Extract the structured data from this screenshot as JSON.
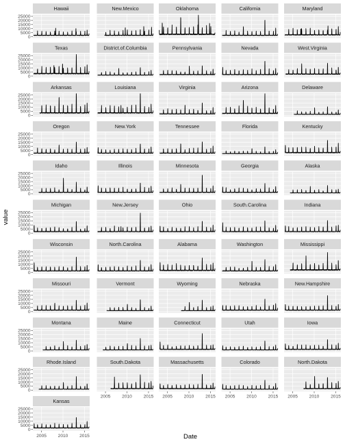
{
  "chart_data": {
    "type": "line",
    "facet_layout": "wrap",
    "ncol": 5,
    "xlabel": "Date",
    "ylabel": "value",
    "xlim": [
      2003.0,
      2016.2
    ],
    "ylim": [
      -1500,
      27000
    ],
    "x_ticks": [
      2005,
      2010,
      2015
    ],
    "x_tick_labels": [
      "2005",
      "2010",
      "2015"
    ],
    "y_ticks": [
      0,
      5000,
      10000,
      15000,
      20000,
      25000
    ],
    "y_tick_labels": [
      "0",
      "5000",
      "10000",
      "15000",
      "20000",
      "25000"
    ],
    "grid": true,
    "colors": {
      "panel_bg": "#ebebeb",
      "strip_bg": "#d9d9d9",
      "grid_major": "#ffffff",
      "line": "#000000"
    },
    "series": [
      {
        "name": "Hawaii",
        "start": 2003.2,
        "base": 1500,
        "peaks": [
          {
            "x": 2008.3,
            "y": 9000
          },
          {
            "x": 2013.0,
            "y": 9000
          },
          {
            "x": 2015.6,
            "y": 6500
          }
        ],
        "seasonal": 4500
      },
      {
        "name": "New.Mexico",
        "start": 2004.8,
        "base": 1500,
        "peaks": [
          {
            "x": 2009.6,
            "y": 10000
          },
          {
            "x": 2013.9,
            "y": 11000
          },
          {
            "x": 2015.7,
            "y": 10000
          }
        ],
        "seasonal": 5500
      },
      {
        "name": "Oklahoma",
        "start": 2003.1,
        "base": 2500,
        "peaks": [
          {
            "x": 2003.8,
            "y": 15000
          },
          {
            "x": 2008.1,
            "y": 14000
          },
          {
            "x": 2012.2,
            "y": 24500
          },
          {
            "x": 2014.8,
            "y": 14000
          }
        ],
        "seasonal": 9500
      },
      {
        "name": "California",
        "start": 2003.2,
        "base": 1500,
        "peaks": [
          {
            "x": 2008.1,
            "y": 8000
          },
          {
            "x": 2013.1,
            "y": 16000
          },
          {
            "x": 2015.6,
            "y": 9000
          }
        ],
        "seasonal": 5000
      },
      {
        "name": "Maryland",
        "start": 2003.2,
        "base": 2000,
        "peaks": [
          {
            "x": 2006.9,
            "y": 8000
          },
          {
            "x": 2013.2,
            "y": 11000
          },
          {
            "x": 2015.6,
            "y": 10000
          }
        ],
        "seasonal": 7000
      },
      {
        "name": "Texas",
        "start": 2003.2,
        "base": 2500,
        "peaks": [
          {
            "x": 2007.9,
            "y": 11000
          },
          {
            "x": 2009.9,
            "y": 13000
          },
          {
            "x": 2013.1,
            "y": 19000
          },
          {
            "x": 2015.6,
            "y": 11000
          }
        ],
        "seasonal": 7500
      },
      {
        "name": "District.of.Columbia",
        "start": 2003.2,
        "base": 1000,
        "peaks": [
          {
            "x": 2008.1,
            "y": 5000
          },
          {
            "x": 2013.1,
            "y": 7000
          },
          {
            "x": 2015.6,
            "y": 6000
          }
        ],
        "seasonal": 3500
      },
      {
        "name": "Pennsylvania",
        "start": 2003.2,
        "base": 1500,
        "peaks": [
          {
            "x": 2010.1,
            "y": 6000
          },
          {
            "x": 2013.1,
            "y": 8000
          },
          {
            "x": 2015.6,
            "y": 7000
          }
        ],
        "seasonal": 4500
      },
      {
        "name": "Nevada",
        "start": 2003.2,
        "base": 1500,
        "peaks": [
          {
            "x": 2003.3,
            "y": 9000
          },
          {
            "x": 2013.1,
            "y": 13000
          },
          {
            "x": 2015.6,
            "y": 8000
          }
        ],
        "seasonal": 5500
      },
      {
        "name": "West.Virginia",
        "start": 2003.4,
        "base": 2000,
        "peaks": [
          {
            "x": 2007.1,
            "y": 8000
          },
          {
            "x": 2013.1,
            "y": 10000
          },
          {
            "x": 2015.6,
            "y": 9000
          }
        ],
        "seasonal": 6000
      },
      {
        "name": "Arkansas",
        "start": 2004.6,
        "base": 2500,
        "peaks": [
          {
            "x": 2009.1,
            "y": 14000
          },
          {
            "x": 2013.1,
            "y": 24000
          },
          {
            "x": 2015.6,
            "y": 12000
          }
        ],
        "seasonal": 9500
      },
      {
        "name": "Louisiana",
        "start": 2003.2,
        "base": 2500,
        "peaks": [
          {
            "x": 2008.6,
            "y": 9000
          },
          {
            "x": 2013.1,
            "y": 21000
          },
          {
            "x": 2015.6,
            "y": 11000
          }
        ],
        "seasonal": 7500
      },
      {
        "name": "Virginia",
        "start": 2003.2,
        "base": 1500,
        "peaks": [
          {
            "x": 2009.1,
            "y": 7000
          },
          {
            "x": 2013.1,
            "y": 11000
          },
          {
            "x": 2015.6,
            "y": 8000
          }
        ],
        "seasonal": 5000
      },
      {
        "name": "Arizona",
        "start": 2003.2,
        "base": 2000,
        "peaks": [
          {
            "x": 2008.1,
            "y": 11000
          },
          {
            "x": 2013.1,
            "y": 20000
          },
          {
            "x": 2015.6,
            "y": 10000
          }
        ],
        "seasonal": 7000
      },
      {
        "name": "Delaware",
        "start": 2005.3,
        "base": 1000,
        "peaks": [
          {
            "x": 2010.1,
            "y": 4500
          },
          {
            "x": 2013.1,
            "y": 7000
          },
          {
            "x": 2015.6,
            "y": 6000
          }
        ],
        "seasonal": 3500
      },
      {
        "name": "Oregon",
        "start": 2003.2,
        "base": 1500,
        "peaks": [
          {
            "x": 2009.1,
            "y": 6000
          },
          {
            "x": 2013.1,
            "y": 10000
          },
          {
            "x": 2015.6,
            "y": 7000
          }
        ],
        "seasonal": 5000
      },
      {
        "name": "New.York",
        "start": 2003.2,
        "base": 1500,
        "peaks": [
          {
            "x": 2003.3,
            "y": 7000
          },
          {
            "x": 2013.1,
            "y": 9000
          },
          {
            "x": 2015.6,
            "y": 8000
          }
        ],
        "seasonal": 4500
      },
      {
        "name": "Tennessee",
        "start": 2003.2,
        "base": 1500,
        "peaks": [
          {
            "x": 2008.1,
            "y": 7000
          },
          {
            "x": 2013.1,
            "y": 10000
          },
          {
            "x": 2015.6,
            "y": 9000
          }
        ],
        "seasonal": 5000
      },
      {
        "name": "Florida",
        "start": 2003.2,
        "base": 1000,
        "peaks": [
          {
            "x": 2010.1,
            "y": 4000
          },
          {
            "x": 2013.1,
            "y": 6000
          },
          {
            "x": 2015.6,
            "y": 5000
          }
        ],
        "seasonal": 3000
      },
      {
        "name": "Kentucky",
        "start": 2003.2,
        "base": 2000,
        "peaks": [
          {
            "x": 2003.3,
            "y": 9000
          },
          {
            "x": 2013.1,
            "y": 11000
          },
          {
            "x": 2015.6,
            "y": 12000
          }
        ],
        "seasonal": 6500
      },
      {
        "name": "Idaho",
        "start": 2004.4,
        "base": 1500,
        "peaks": [
          {
            "x": 2010.1,
            "y": 14000
          },
          {
            "x": 2013.1,
            "y": 8000
          },
          {
            "x": 2015.6,
            "y": 7000
          }
        ],
        "seasonal": 4500
      },
      {
        "name": "Illinois",
        "start": 2003.2,
        "base": 1500,
        "peaks": [
          {
            "x": 2003.3,
            "y": 8000
          },
          {
            "x": 2013.1,
            "y": 9000
          },
          {
            "x": 2015.6,
            "y": 8000
          }
        ],
        "seasonal": 5000
      },
      {
        "name": "Minnesota",
        "start": 2003.2,
        "base": 1500,
        "peaks": [
          {
            "x": 2008.1,
            "y": 6000
          },
          {
            "x": 2013.1,
            "y": 18000
          },
          {
            "x": 2015.6,
            "y": 8000
          }
        ],
        "seasonal": 5000
      },
      {
        "name": "Georgia",
        "start": 2003.2,
        "base": 1500,
        "peaks": [
          {
            "x": 2003.3,
            "y": 7000
          },
          {
            "x": 2013.1,
            "y": 8000
          },
          {
            "x": 2015.6,
            "y": 7000
          }
        ],
        "seasonal": 4500
      },
      {
        "name": "Alaska",
        "start": 2004.4,
        "base": 1000,
        "peaks": [
          {
            "x": 2009.1,
            "y": 4500
          },
          {
            "x": 2013.1,
            "y": 6000
          },
          {
            "x": 2015.6,
            "y": 5000
          }
        ],
        "seasonal": 3500
      },
      {
        "name": "Michigan",
        "start": 2003.2,
        "base": 1500,
        "peaks": [
          {
            "x": 2003.3,
            "y": 8000
          },
          {
            "x": 2013.1,
            "y": 9000
          },
          {
            "x": 2015.6,
            "y": 7000
          }
        ],
        "seasonal": 4500
      },
      {
        "name": "New.Jersey",
        "start": 2003.2,
        "base": 1500,
        "peaks": [
          {
            "x": 2008.6,
            "y": 6000
          },
          {
            "x": 2013.1,
            "y": 20000
          },
          {
            "x": 2015.6,
            "y": 7000
          }
        ],
        "seasonal": 5500
      },
      {
        "name": "Ohio",
        "start": 2003.2,
        "base": 1500,
        "peaks": [
          {
            "x": 2003.3,
            "y": 7000
          },
          {
            "x": 2013.1,
            "y": 9000
          },
          {
            "x": 2015.6,
            "y": 8000
          }
        ],
        "seasonal": 5000
      },
      {
        "name": "South.Carolina",
        "start": 2003.2,
        "base": 1500,
        "peaks": [
          {
            "x": 2003.3,
            "y": 11000
          },
          {
            "x": 2013.1,
            "y": 9000
          },
          {
            "x": 2015.6,
            "y": 8000
          }
        ],
        "seasonal": 5000
      },
      {
        "name": "Indiana",
        "start": 2003.2,
        "base": 1500,
        "peaks": [
          {
            "x": 2003.3,
            "y": 7000
          },
          {
            "x": 2013.1,
            "y": 9000
          },
          {
            "x": 2015.6,
            "y": 8000
          }
        ],
        "seasonal": 5500
      },
      {
        "name": "Wisconsin",
        "start": 2003.2,
        "base": 1500,
        "peaks": [
          {
            "x": 2003.3,
            "y": 10000
          },
          {
            "x": 2013.1,
            "y": 14000
          },
          {
            "x": 2015.6,
            "y": 7000
          }
        ],
        "seasonal": 5000
      },
      {
        "name": "North.Carolina",
        "start": 2003.2,
        "base": 1500,
        "peaks": [
          {
            "x": 2003.3,
            "y": 8000
          },
          {
            "x": 2013.1,
            "y": 10000
          },
          {
            "x": 2015.6,
            "y": 8000
          }
        ],
        "seasonal": 5000
      },
      {
        "name": "Alabama",
        "start": 2003.2,
        "base": 2000,
        "peaks": [
          {
            "x": 2003.3,
            "y": 10000
          },
          {
            "x": 2013.1,
            "y": 11000
          },
          {
            "x": 2015.6,
            "y": 9000
          }
        ],
        "seasonal": 6500
      },
      {
        "name": "Washington",
        "start": 2003.2,
        "base": 1500,
        "peaks": [
          {
            "x": 2010.1,
            "y": 8000
          },
          {
            "x": 2013.1,
            "y": 11000
          },
          {
            "x": 2015.6,
            "y": 8000
          }
        ],
        "seasonal": 4500
      },
      {
        "name": "Mississippi",
        "start": 2004.4,
        "base": 2500,
        "peaks": [
          {
            "x": 2008.1,
            "y": 10000
          },
          {
            "x": 2013.1,
            "y": 15000
          },
          {
            "x": 2015.6,
            "y": 12000
          }
        ],
        "seasonal": 7500
      },
      {
        "name": "Missouri",
        "start": 2003.2,
        "base": 1500,
        "peaks": [
          {
            "x": 2008.1,
            "y": 5000
          },
          {
            "x": 2013.1,
            "y": 9000
          },
          {
            "x": 2015.6,
            "y": 9000
          }
        ],
        "seasonal": 5000
      },
      {
        "name": "Vermont",
        "start": 2005.3,
        "base": 1000,
        "peaks": [
          {
            "x": 2010.1,
            "y": 5000
          },
          {
            "x": 2013.1,
            "y": 11000
          },
          {
            "x": 2015.6,
            "y": 6000
          }
        ],
        "seasonal": 3500
      },
      {
        "name": "Wyoming",
        "start": 2008.2,
        "base": 1000,
        "peaks": [
          {
            "x": 2010.1,
            "y": 7000
          },
          {
            "x": 2013.1,
            "y": 9000
          },
          {
            "x": 2015.6,
            "y": 6000
          }
        ],
        "seasonal": 4500
      },
      {
        "name": "Nebraska",
        "start": 2003.2,
        "base": 1500,
        "peaks": [
          {
            "x": 2003.3,
            "y": 6000
          },
          {
            "x": 2013.1,
            "y": 10000
          },
          {
            "x": 2015.6,
            "y": 8000
          }
        ],
        "seasonal": 5000
      },
      {
        "name": "New.Hampshire",
        "start": 2003.2,
        "base": 1500,
        "peaks": [
          {
            "x": 2003.3,
            "y": 7000
          },
          {
            "x": 2013.1,
            "y": 14000
          },
          {
            "x": 2015.6,
            "y": 7000
          }
        ],
        "seasonal": 5000
      },
      {
        "name": "Montana",
        "start": 2005.3,
        "base": 1000,
        "peaks": [
          {
            "x": 2010.1,
            "y": 6000
          },
          {
            "x": 2013.1,
            "y": 9000
          },
          {
            "x": 2015.6,
            "y": 7000
          }
        ],
        "seasonal": 4500
      },
      {
        "name": "Maine",
        "start": 2004.4,
        "base": 1000,
        "peaks": [
          {
            "x": 2010.1,
            "y": 5000
          },
          {
            "x": 2013.1,
            "y": 10000
          },
          {
            "x": 2015.6,
            "y": 6000
          }
        ],
        "seasonal": 4500
      },
      {
        "name": "Connecticut",
        "start": 2003.2,
        "base": 1500,
        "peaks": [
          {
            "x": 2003.3,
            "y": 9000
          },
          {
            "x": 2013.1,
            "y": 16000
          },
          {
            "x": 2015.6,
            "y": 6000
          }
        ],
        "seasonal": 4500
      },
      {
        "name": "Utah",
        "start": 2003.2,
        "base": 1000,
        "peaks": [
          {
            "x": 2003.3,
            "y": 5000
          },
          {
            "x": 2013.1,
            "y": 8000
          },
          {
            "x": 2015.6,
            "y": 6000
          }
        ],
        "seasonal": 4000
      },
      {
        "name": "Iowa",
        "start": 2003.2,
        "base": 1500,
        "peaks": [
          {
            "x": 2003.3,
            "y": 7000
          },
          {
            "x": 2013.1,
            "y": 9000
          },
          {
            "x": 2015.6,
            "y": 8000
          }
        ],
        "seasonal": 5000
      },
      {
        "name": "Rhode.Island",
        "start": 2004.4,
        "base": 1000,
        "peaks": [
          {
            "x": 2010.1,
            "y": 6000
          },
          {
            "x": 2013.1,
            "y": 12000
          },
          {
            "x": 2015.6,
            "y": 7000
          }
        ],
        "seasonal": 4000
      },
      {
        "name": "South.Dakota",
        "start": 2006.2,
        "base": 1500,
        "peaks": [
          {
            "x": 2007.1,
            "y": 8000
          },
          {
            "x": 2013.1,
            "y": 11000
          },
          {
            "x": 2015.6,
            "y": 9000
          }
        ],
        "seasonal": 7000
      },
      {
        "name": "Massachusetts",
        "start": 2003.2,
        "base": 1500,
        "peaks": [
          {
            "x": 2003.3,
            "y": 6000
          },
          {
            "x": 2013.1,
            "y": 15000
          },
          {
            "x": 2015.6,
            "y": 7000
          }
        ],
        "seasonal": 4500
      },
      {
        "name": "Colorado",
        "start": 2003.2,
        "base": 1000,
        "peaks": [
          {
            "x": 2003.3,
            "y": 6000
          },
          {
            "x": 2013.1,
            "y": 8000
          },
          {
            "x": 2015.6,
            "y": 7000
          }
        ],
        "seasonal": 4000
      },
      {
        "name": "North.Dakota",
        "start": 2007.5,
        "base": 1500,
        "peaks": [
          {
            "x": 2010.1,
            "y": 11000
          },
          {
            "x": 2013.1,
            "y": 10000
          },
          {
            "x": 2015.6,
            "y": 9000
          }
        ],
        "seasonal": 7000
      },
      {
        "name": "Kansas",
        "start": 2003.2,
        "base": 1500,
        "peaks": [
          {
            "x": 2003.3,
            "y": 5000
          },
          {
            "x": 2013.1,
            "y": 10000
          },
          {
            "x": 2015.6,
            "y": 8000
          }
        ],
        "seasonal": 4500
      }
    ]
  }
}
